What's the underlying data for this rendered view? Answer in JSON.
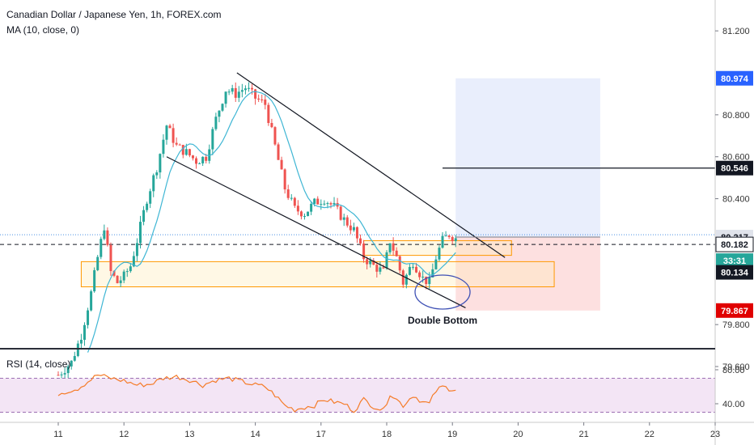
{
  "header": {
    "title": "Canadian Dollar / Japanese Yen, 1h, FOREX.com",
    "indicator": "MA (10, close, 0)"
  },
  "rsi_panel": {
    "label": "RSI (14, close)",
    "ticks": [
      "80.00",
      "40.00"
    ]
  },
  "colors": {
    "up": "#26a69a",
    "down": "#ef5350",
    "ma": "#3fb6d4",
    "rsi": "#f57c29",
    "zone": "#ff9800",
    "target_fill": "#e9eefc",
    "stop_fill": "#fde0e0",
    "target_badge": "#2962ff",
    "stop_badge": "#e00000",
    "dark_badge": "#131722",
    "current_badge": "#26a69a"
  },
  "badges": {
    "target": "80.974",
    "resistance": "80.546",
    "entry": "80.217",
    "current": "80.182",
    "timer": "33:31",
    "level": "80.134",
    "stop": "79.867"
  },
  "annotation": "Double Bottom",
  "chart_data": {
    "type": "candlestick",
    "y_axis": {
      "ticks": [
        "81.200",
        "80.800",
        "80.600",
        "80.400",
        "79.800",
        "79.600"
      ],
      "tick_values": [
        81.2,
        80.8,
        80.6,
        80.4,
        79.8,
        79.6
      ],
      "ylim": [
        79.55,
        81.27
      ]
    },
    "x_axis": {
      "ticks": [
        "11",
        "12",
        "13",
        "14",
        "17",
        "18",
        "19",
        "20",
        "21",
        "22",
        "23"
      ],
      "tick_index": [
        0,
        1,
        2,
        3,
        4,
        5,
        6,
        7,
        8,
        9,
        10
      ]
    },
    "price_path": [
      [
        0.0,
        79.56
      ],
      [
        0.2,
        79.62
      ],
      [
        0.35,
        79.75
      ],
      [
        0.5,
        79.95
      ],
      [
        0.6,
        80.12
      ],
      [
        0.7,
        80.27
      ],
      [
        0.8,
        80.05
      ],
      [
        0.9,
        80.0
      ],
      [
        1.0,
        80.03
      ],
      [
        1.1,
        80.08
      ],
      [
        1.2,
        80.2
      ],
      [
        1.35,
        80.4
      ],
      [
        1.5,
        80.55
      ],
      [
        1.65,
        80.75
      ],
      [
        1.8,
        80.65
      ],
      [
        1.95,
        80.62
      ],
      [
        2.1,
        80.58
      ],
      [
        2.25,
        80.6
      ],
      [
        2.4,
        80.78
      ],
      [
        2.55,
        80.92
      ],
      [
        2.7,
        80.9
      ],
      [
        2.85,
        80.93
      ],
      [
        3.0,
        80.88
      ],
      [
        3.15,
        80.85
      ],
      [
        3.3,
        80.65
      ],
      [
        3.45,
        80.45
      ],
      [
        3.6,
        80.35
      ],
      [
        3.75,
        80.33
      ],
      [
        3.9,
        80.38
      ],
      [
        4.05,
        80.4
      ],
      [
        4.2,
        80.36
      ],
      [
        4.35,
        80.3
      ],
      [
        4.5,
        80.25
      ],
      [
        4.65,
        80.12
      ],
      [
        4.8,
        80.08
      ],
      [
        4.95,
        80.05
      ],
      [
        5.05,
        80.2
      ],
      [
        5.15,
        80.12
      ],
      [
        5.25,
        80.0
      ],
      [
        5.4,
        80.1
      ],
      [
        5.55,
        80.02
      ],
      [
        5.65,
        80.0
      ],
      [
        5.75,
        80.12
      ],
      [
        5.85,
        80.2
      ],
      [
        5.95,
        80.23
      ],
      [
        6.05,
        80.21
      ]
    ],
    "ma_period": 10,
    "rsi_path": [
      [
        0.0,
        52
      ],
      [
        0.3,
        58
      ],
      [
        0.6,
        74
      ],
      [
        0.8,
        70
      ],
      [
        1.0,
        67
      ],
      [
        1.2,
        62
      ],
      [
        1.4,
        63
      ],
      [
        1.6,
        70
      ],
      [
        1.8,
        72
      ],
      [
        2.0,
        68
      ],
      [
        2.2,
        62
      ],
      [
        2.4,
        68
      ],
      [
        2.6,
        70
      ],
      [
        2.8,
        66
      ],
      [
        3.0,
        62
      ],
      [
        3.15,
        60
      ],
      [
        3.3,
        50
      ],
      [
        3.45,
        38
      ],
      [
        3.6,
        33
      ],
      [
        3.75,
        36
      ],
      [
        3.9,
        38
      ],
      [
        4.05,
        45
      ],
      [
        4.2,
        42
      ],
      [
        4.35,
        40
      ],
      [
        4.5,
        32
      ],
      [
        4.65,
        45
      ],
      [
        4.8,
        37
      ],
      [
        4.95,
        32
      ],
      [
        5.05,
        52
      ],
      [
        5.15,
        45
      ],
      [
        5.25,
        38
      ],
      [
        5.4,
        50
      ],
      [
        5.55,
        42
      ],
      [
        5.65,
        40
      ],
      [
        5.75,
        55
      ],
      [
        5.85,
        60
      ],
      [
        5.95,
        58
      ],
      [
        6.05,
        57
      ]
    ],
    "rsi_ylim": [
      20,
      100
    ],
    "rsi_band": [
      30,
      70
    ],
    "trendlines": [
      {
        "from": [
          2.72,
          81.0
        ],
        "to": [
          6.8,
          80.12
        ]
      },
      {
        "from": [
          1.65,
          80.6
        ],
        "to": [
          6.2,
          79.88
        ]
      }
    ],
    "levels": {
      "target": 80.974,
      "resistance": 80.546,
      "entry": 80.217,
      "current": 80.182,
      "level": 80.134,
      "stop": 79.867
    },
    "zones": [
      {
        "x": [
          0.35,
          7.55
        ],
        "y": [
          79.98,
          80.1
        ]
      },
      {
        "x": [
          4.65,
          6.9
        ],
        "y": [
          80.13,
          80.2
        ]
      }
    ],
    "position": {
      "x": [
        6.05,
        8.25
      ],
      "target": 80.974,
      "entry": 80.217,
      "stop": 79.867
    },
    "resistance_line_x": [
      5.85,
      10.1
    ]
  }
}
